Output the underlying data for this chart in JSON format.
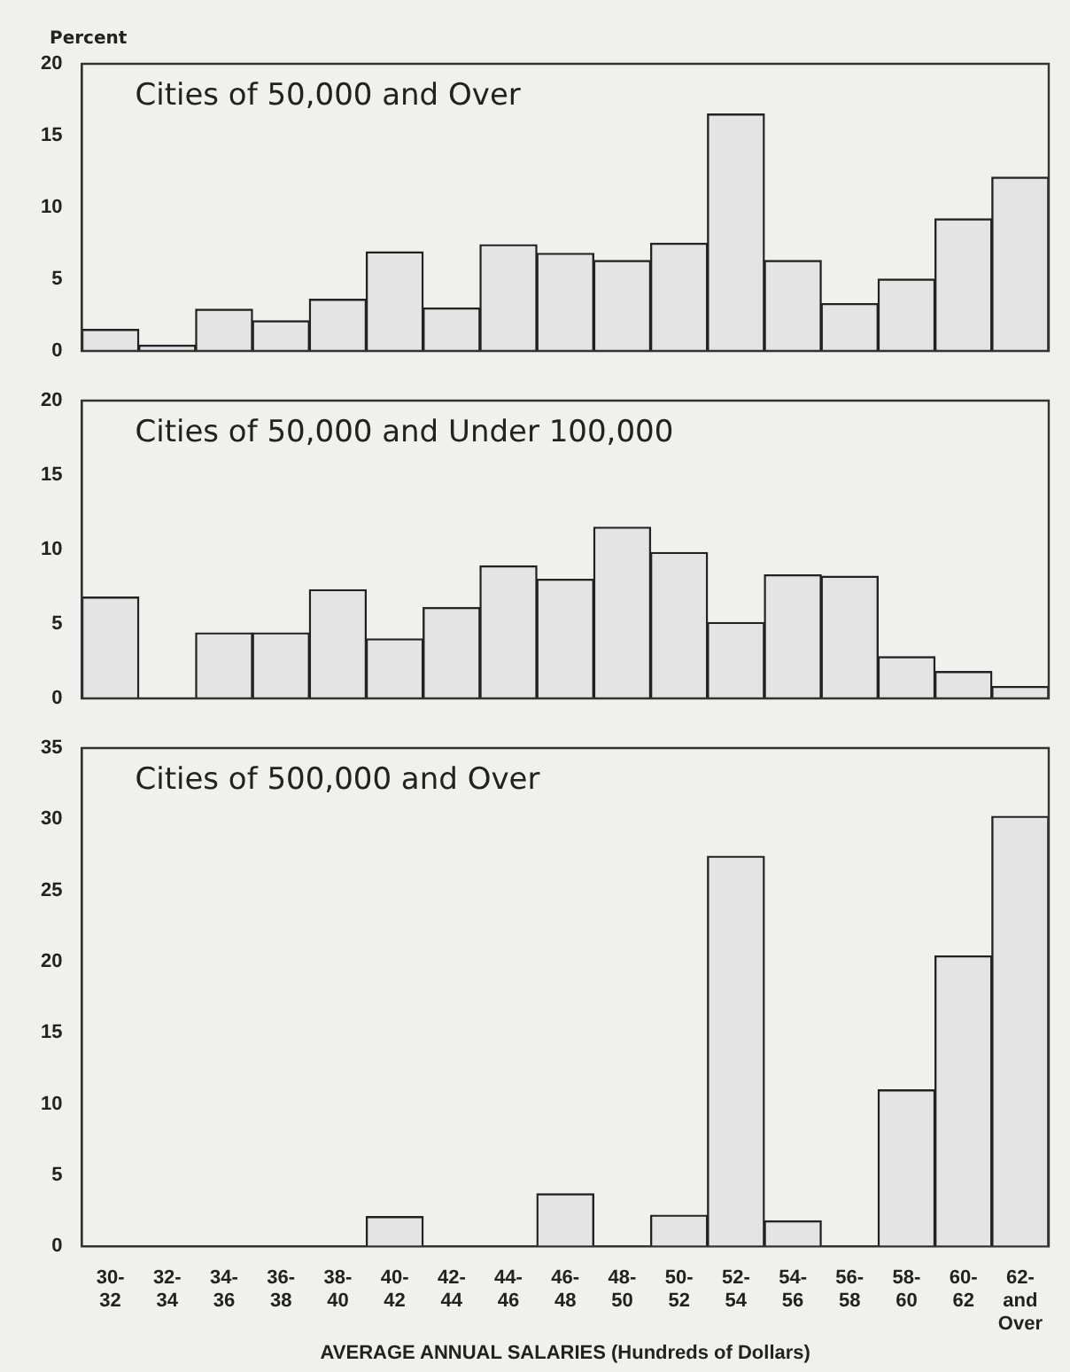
{
  "chart_data": [
    {
      "type": "bar",
      "title": "Cities of 50,000 and Over",
      "ylabel": "Percent",
      "categories": [
        null,
        null,
        null,
        null,
        null,
        null,
        null,
        null,
        null,
        null,
        null,
        null,
        null,
        null,
        null,
        null,
        null
      ],
      "color": "#e4e4e4",
      "values": [
        1.5,
        0.4,
        2.9,
        2.1,
        3.6,
        6.9,
        3.0,
        7.4,
        6.8,
        6.3,
        7.5,
        16.5,
        6.3,
        3.3,
        5.0,
        9.2,
        12.1
      ],
      "ylim": [
        0,
        20
      ],
      "yticks": [
        0,
        5,
        10,
        15,
        20
      ],
      "tick_labels": "y"
    },
    {
      "type": "bar",
      "title": "Cities of 50,000 and Under 100,000",
      "categories": [
        null,
        null,
        null,
        null,
        null,
        null,
        null,
        null,
        null,
        null,
        null,
        null,
        null,
        null,
        null,
        null,
        null
      ],
      "color": "#e4e4e4",
      "values": [
        6.8,
        0,
        4.4,
        4.4,
        7.3,
        4.0,
        6.1,
        8.9,
        8.0,
        11.5,
        9.8,
        5.1,
        8.3,
        8.2,
        2.8,
        1.8,
        0.8
      ],
      "ylim": [
        0,
        20
      ],
      "yticks": [
        0,
        5,
        10,
        15,
        20
      ],
      "tick_labels": "y"
    },
    {
      "type": "bar",
      "title": "Cities of 500,000 and Over",
      "xlabel": "AVERAGE ANNUAL SALARIES (Hundreds of Dollars)",
      "categories": [
        "30- 32",
        "32- 34",
        "34- 36",
        "36- 38",
        "38- 40",
        "40- 42",
        "42- 44",
        "44- 46",
        "46- 48",
        "48- 50",
        "50- 52",
        "52- 54",
        "54- 56",
        "56- 58",
        "58- 60",
        "60- 62",
        "62- and Over"
      ],
      "color": "#e4e4e4",
      "values": [
        0,
        0,
        0,
        0,
        0,
        2.1,
        0,
        0,
        3.7,
        0,
        2.2,
        27.4,
        1.8,
        0,
        11.0,
        20.4,
        30.2
      ],
      "ylim": [
        0,
        35
      ],
      "yticks": [
        0,
        5,
        10,
        15,
        20,
        25,
        30,
        35
      ]
    }
  ]
}
